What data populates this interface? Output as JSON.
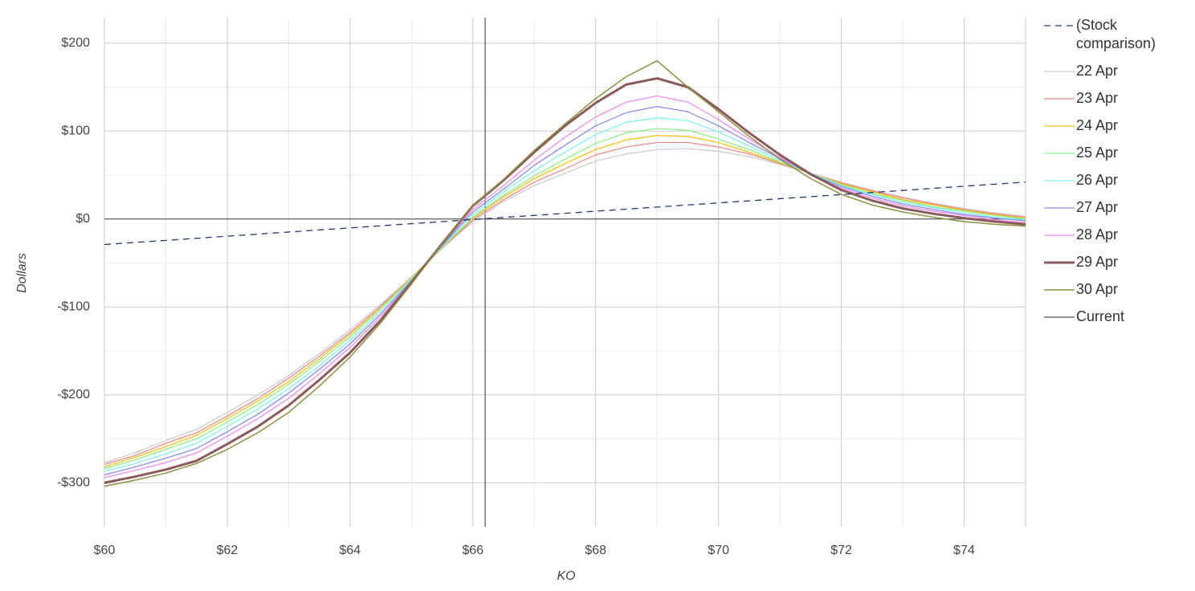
{
  "chart_data": {
    "type": "line",
    "x_label": "KO",
    "y_label": "Dollars",
    "x": [
      60,
      60.5,
      61,
      61.5,
      62,
      62.5,
      63,
      63.5,
      64,
      64.5,
      65,
      65.5,
      66,
      66.5,
      67,
      67.5,
      68,
      68.5,
      69,
      69.5,
      70,
      70.5,
      71,
      71.5,
      72,
      72.5,
      73,
      73.5,
      74,
      74.5,
      75
    ],
    "xlim": [
      60,
      75
    ],
    "ylim": [
      -350,
      229
    ],
    "xticks": [
      {
        "value": 60,
        "label": "$60"
      },
      {
        "value": 62,
        "label": "$62"
      },
      {
        "value": 64,
        "label": "$64"
      },
      {
        "value": 66,
        "label": "$66"
      },
      {
        "value": 68,
        "label": "$68"
      },
      {
        "value": 70,
        "label": "$70"
      },
      {
        "value": 72,
        "label": "$72"
      },
      {
        "value": 74,
        "label": "$74"
      }
    ],
    "yticks": [
      {
        "value": -300,
        "label": "-$300"
      },
      {
        "value": -200,
        "label": "-$200"
      },
      {
        "value": -100,
        "label": "-$100"
      },
      {
        "value": 0,
        "label": "$0"
      },
      {
        "value": 100,
        "label": "$100"
      },
      {
        "value": 200,
        "label": "$200"
      }
    ],
    "xminorticks": [
      61,
      63,
      65,
      67,
      69,
      71,
      73
    ],
    "yminorticks": [
      -250,
      -150,
      -50,
      50,
      150
    ],
    "grid": true,
    "legend": "right",
    "series": [
      {
        "name": "(Stock comparison)",
        "color": "#1f3a6e",
        "dash": "8 6",
        "width": 1.3,
        "values": [
          -29,
          -26.6,
          -24.3,
          -21.9,
          -19.5,
          -17.2,
          -14.8,
          -12.4,
          -10.1,
          -7.7,
          -5.3,
          -3.0,
          -0.6,
          1.8,
          4.1,
          6.5,
          8.9,
          11.2,
          13.6,
          16.0,
          18.3,
          20.7,
          23.1,
          25.4,
          27.8,
          30.2,
          32.5,
          34.9,
          37.3,
          39.6,
          42.0
        ]
      },
      {
        "name": "22 Apr",
        "color": "#cccccc",
        "width": 1.3,
        "values": [
          -277,
          -266,
          -252,
          -239,
          -220,
          -200,
          -178,
          -153,
          -126,
          -97,
          -66,
          -33,
          -3,
          20,
          38,
          52,
          66,
          74,
          79,
          80,
          77,
          71,
          62,
          52,
          42,
          33,
          25,
          18,
          12,
          7,
          3
        ]
      },
      {
        "name": "23 Apr",
        "color": "#f08a8a",
        "width": 1.3,
        "values": [
          -279,
          -269,
          -255,
          -243,
          -224,
          -204,
          -181,
          -156,
          -129,
          -99,
          -67,
          -33,
          -1,
          22,
          42,
          57,
          73,
          82,
          87,
          87,
          82,
          74,
          63,
          52,
          41,
          32,
          24,
          17,
          11,
          6,
          2
        ]
      },
      {
        "name": "24 Apr",
        "color": "#f5c116",
        "width": 1.3,
        "values": [
          -282,
          -271,
          -259,
          -246,
          -227,
          -207,
          -185,
          -159,
          -131,
          -101,
          -67,
          -32,
          1,
          25,
          46,
          63,
          79,
          90,
          95,
          94,
          87,
          76,
          64,
          52,
          40,
          31,
          22,
          16,
          10,
          5,
          1
        ]
      },
      {
        "name": "25 Apr",
        "color": "#8af08a",
        "width": 1.3,
        "values": [
          -284,
          -274,
          -262,
          -250,
          -231,
          -211,
          -188,
          -162,
          -134,
          -102,
          -68,
          -32,
          2,
          27,
          49,
          68,
          86,
          98,
          103,
          101,
          91,
          79,
          65,
          52,
          39,
          29,
          21,
          14,
          9,
          4,
          0
        ]
      },
      {
        "name": "26 Apr",
        "color": "#80f2ee",
        "width": 1.3,
        "values": [
          -287,
          -278,
          -267,
          -255,
          -236,
          -216,
          -193,
          -167,
          -138,
          -105,
          -69,
          -31,
          5,
          31,
          55,
          76,
          96,
          110,
          115,
          112,
          99,
          83,
          67,
          52,
          38,
          28,
          19,
          13,
          7,
          2,
          -1
        ]
      },
      {
        "name": "27 Apr",
        "color": "#8a8aee",
        "width": 1.3,
        "values": [
          -291,
          -282,
          -272,
          -261,
          -242,
          -222,
          -198,
          -171,
          -142,
          -108,
          -70,
          -30,
          8,
          34,
          61,
          84,
          106,
          121,
          128,
          122,
          106,
          87,
          69,
          51,
          37,
          26,
          17,
          11,
          5,
          1,
          -2
        ]
      },
      {
        "name": "28 Apr",
        "color": "#f28af2",
        "width": 1.3,
        "values": [
          -294,
          -286,
          -277,
          -266,
          -247,
          -227,
          -204,
          -176,
          -146,
          -111,
          -71,
          -29,
          11,
          38,
          67,
          93,
          116,
          133,
          140,
          133,
          113,
          91,
          70,
          51,
          35,
          24,
          15,
          9,
          4,
          -1,
          -4
        ]
      },
      {
        "name": "29 Apr",
        "color": "#8b5a5a",
        "width": 3,
        "values": [
          -300,
          -293,
          -285,
          -275,
          -256,
          -236,
          -212,
          -183,
          -152,
          -115,
          -72,
          -28,
          15,
          44,
          76,
          106,
          132,
          153,
          160,
          150,
          125,
          98,
          73,
          51,
          33,
          21,
          12,
          6,
          1,
          -3,
          -6
        ]
      },
      {
        "name": "30 Apr",
        "color": "#8e8e3e",
        "width": 1.5,
        "values": [
          -304,
          -297,
          -289,
          -278,
          -262,
          -243,
          -220,
          -190,
          -157,
          -118,
          -74,
          -28,
          15,
          45,
          78,
          108,
          137,
          162,
          180,
          150,
          122,
          94,
          68,
          46,
          28,
          16,
          8,
          2,
          -3,
          -6,
          -8
        ]
      }
    ],
    "reference_line": {
      "name": "Current",
      "x": 66.2,
      "color": "#555555"
    }
  }
}
